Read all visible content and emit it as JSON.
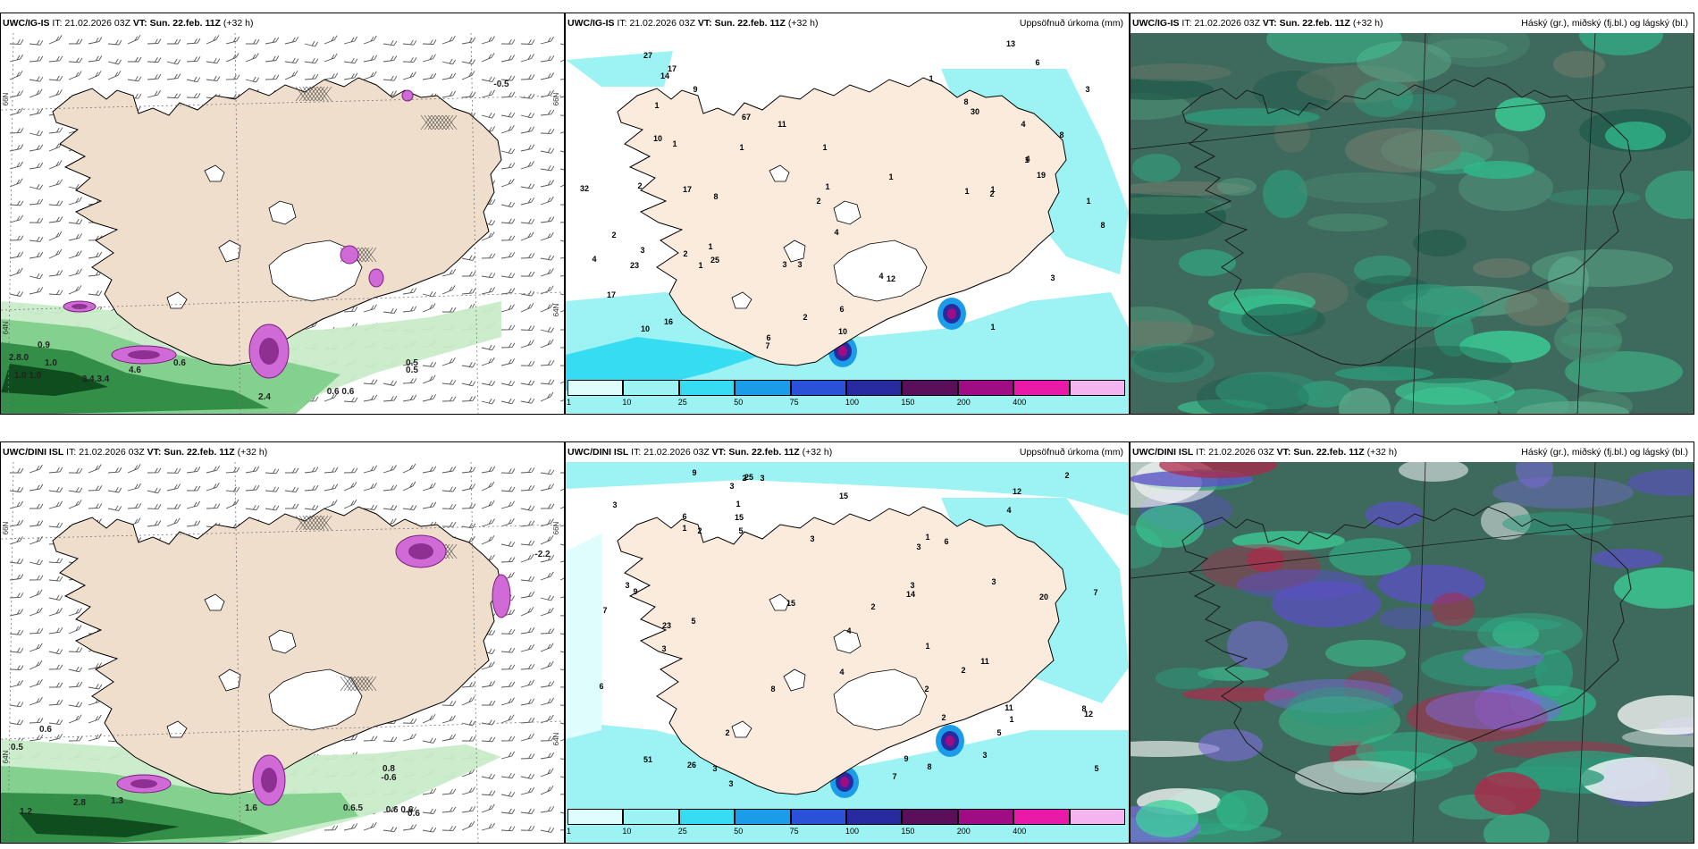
{
  "panels": [
    {
      "model": "UWC/IG-IS",
      "it_label": "IT:",
      "it_value": "21.02.2026 03Z",
      "vt_label": "VT:",
      "vt_value": "Sun. 22.feb. 11Z",
      "lead": "(+32 h)",
      "right_title": "",
      "type": "wind",
      "values": [
        "0.9",
        "2.8.0",
        "1.0",
        "1.0 1.0",
        "3.4.3.4",
        "4.6",
        "0.6",
        "0.5",
        "0.6 0.6",
        "2.4",
        "0.5",
        "-0.5"
      ],
      "axis_labels": [
        "66N",
        "64N",
        "20W",
        "15W",
        "66N",
        "64N"
      ]
    },
    {
      "model": "UWC/IG-IS",
      "it_label": "IT:",
      "it_value": "21.02.2026 03Z",
      "vt_label": "VT:",
      "vt_value": "Sun. 22.feb. 11Z",
      "lead": "(+32 h)",
      "right_title": "Uppsöfnuð úrkoma (mm)",
      "type": "precip",
      "values": [
        "1",
        "1",
        "1",
        "4",
        "6",
        "11",
        "2",
        "2",
        "3",
        "1",
        "1",
        "9",
        "6",
        "8",
        "10",
        "3",
        "12",
        "1",
        "2",
        "1",
        "4",
        "1",
        "1",
        "2",
        "3",
        "3",
        "2",
        "1",
        "6",
        "4",
        "4",
        "10",
        "7",
        "8",
        "3",
        "1",
        "14",
        "2",
        "4",
        "1",
        "1",
        "1",
        "8",
        "8",
        "23",
        "17",
        "17",
        "27",
        "32",
        "30",
        "25",
        "16",
        "67",
        "13",
        "19",
        "17",
        "10"
      ],
      "legend": [
        "1",
        "10",
        "25",
        "50",
        "75",
        "100",
        "150",
        "200",
        "400"
      ],
      "legend_colors": [
        "#e0fdfd",
        "#9df3f3",
        "#35dcf2",
        "#1a9ce8",
        "#2a52d8",
        "#282aa0",
        "#5a0f5a",
        "#a00c84",
        "#ea1aa8",
        "#f3b4f0"
      ]
    },
    {
      "model": "UWC/IG-IS",
      "it_label": "IT:",
      "it_value": "21.02.2026 03Z",
      "vt_label": "VT:",
      "vt_value": "Sun. 22.feb. 11Z",
      "lead": "(+32 h)",
      "right_title": "Háský (gr.), miðský (fj.bl.) og lágský (bl.)",
      "type": "clouds"
    },
    {
      "model": "UWC/DINI ISL",
      "it_label": "IT:",
      "it_value": "21.02.2026 03Z",
      "vt_label": "VT:",
      "vt_value": "Sun. 22.feb. 11Z",
      "lead": "(+32 h)",
      "right_title": "",
      "type": "wind",
      "values": [
        "-2.2",
        "0.6",
        "0.5",
        "1.2",
        "2.8",
        "1.3",
        "1.6",
        "0.6.5",
        "0.6 0.6",
        "0.6",
        "0.8",
        "-0.6"
      ],
      "axis_labels": [
        "66N",
        "64N",
        "15W",
        "66N",
        "64N"
      ]
    },
    {
      "model": "UWC/DINI ISL",
      "it_label": "IT:",
      "it_value": "21.02.2026 03Z",
      "vt_label": "VT:",
      "vt_value": "Sun. 22.feb. 11Z",
      "lead": "(+32 h)",
      "right_title": "Uppsöfnuð úrkoma (mm)",
      "type": "precip",
      "values": [
        "3",
        "3",
        "3",
        "2",
        "1",
        "2",
        "1",
        "3",
        "3",
        "3",
        "8",
        "6",
        "7",
        "11",
        "9",
        "11",
        "12",
        "4",
        "5",
        "20",
        "26",
        "25",
        "3",
        "6",
        "2",
        "3",
        "2",
        "3",
        "2",
        "1",
        "4",
        "1",
        "3",
        "2",
        "8",
        "5",
        "4",
        "1",
        "5",
        "9",
        "7",
        "15",
        "15",
        "8",
        "7",
        "6",
        "2",
        "2",
        "3",
        "5",
        "14",
        "12",
        "23",
        "51",
        "15",
        "9",
        "3"
      ],
      "legend": [
        "1",
        "10",
        "25",
        "50",
        "75",
        "100",
        "150",
        "200",
        "400"
      ],
      "legend_colors": [
        "#e0fdfd",
        "#9df3f3",
        "#35dcf2",
        "#1a9ce8",
        "#2a52d8",
        "#282aa0",
        "#5a0f5a",
        "#a00c84",
        "#ea1aa8",
        "#f3b4f0"
      ]
    },
    {
      "model": "UWC/DINI ISL",
      "it_label": "IT:",
      "it_value": "21.02.2026 03Z",
      "vt_label": "VT:",
      "vt_value": "Sun. 22.feb. 11Z",
      "lead": "(+32 h)",
      "right_title": "Háský (gr.), miðský (fj.bl.) og lágský (bl.)",
      "type": "clouds"
    }
  ]
}
